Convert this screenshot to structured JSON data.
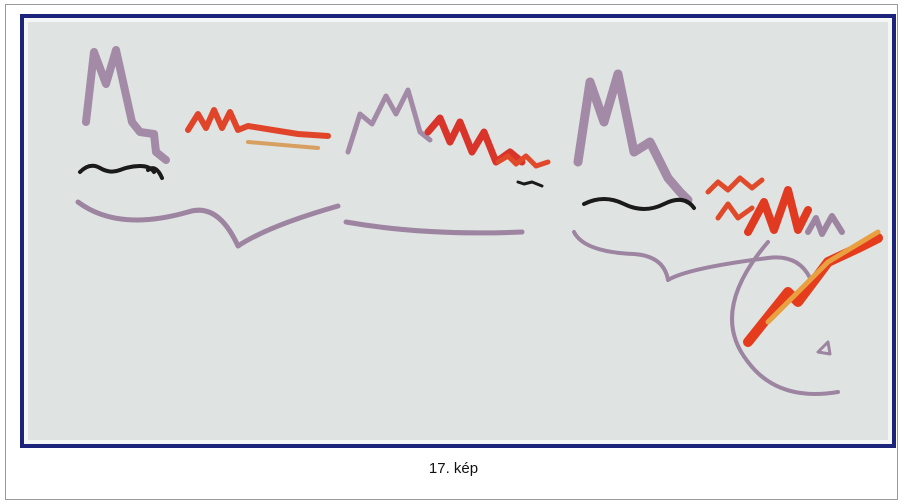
{
  "figure": {
    "caption": "17. kép"
  }
}
